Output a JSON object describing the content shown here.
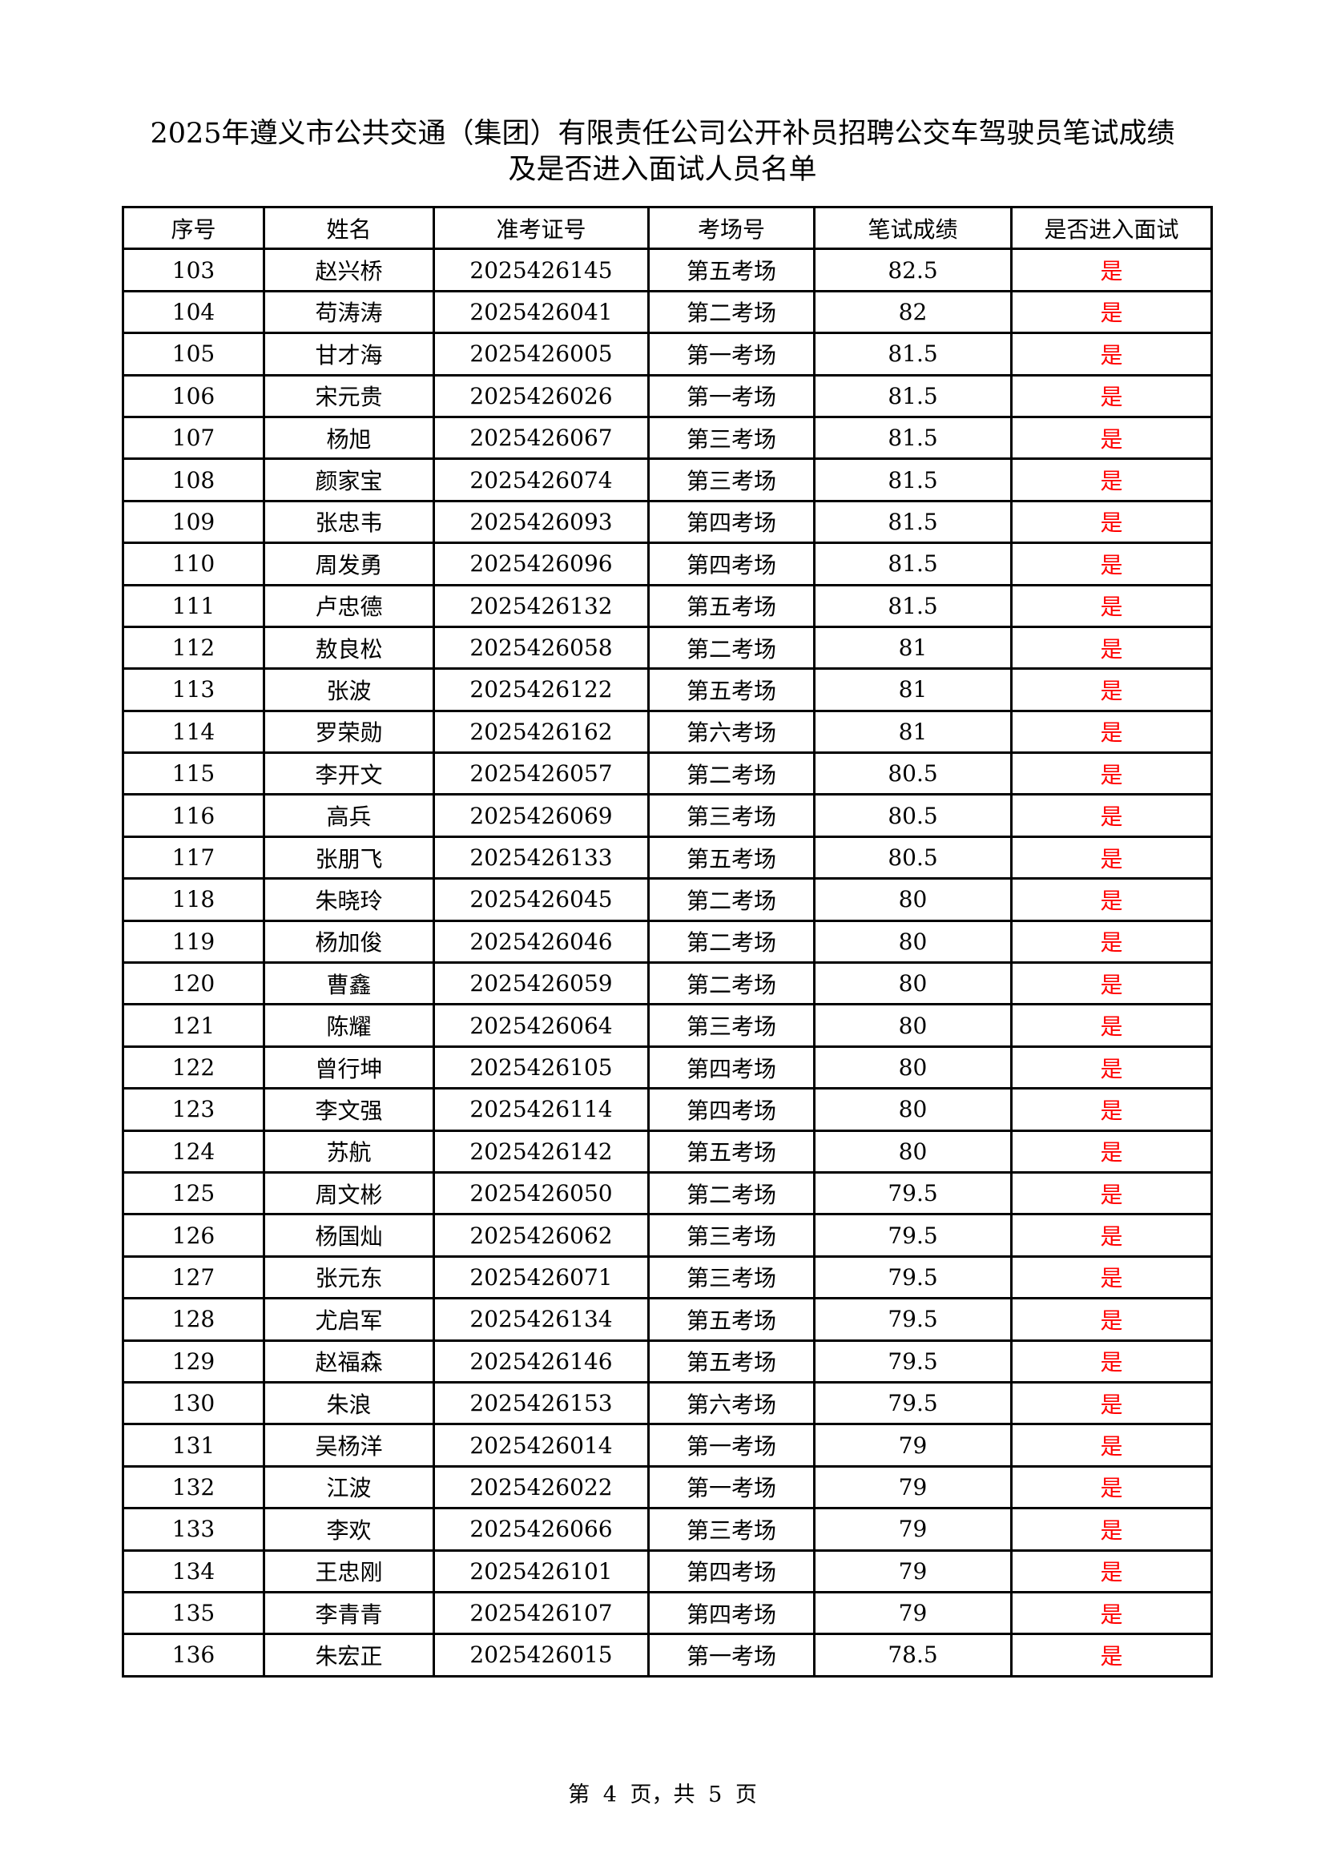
{
  "title": {
    "line1": "2025年遵义市公共交通（集团）有限责任公司公开补员招聘公交车驾驶员笔试成绩",
    "line2": "及是否进入面试人员名单"
  },
  "colors": {
    "yes_text": "#ff0000"
  },
  "table": {
    "headers": [
      "序号",
      "姓名",
      "准考证号",
      "考场号",
      "笔试成绩",
      "是否进入面试"
    ],
    "rows": [
      [
        "103",
        "赵兴桥",
        "2025426145",
        "第五考场",
        "82.5",
        "是"
      ],
      [
        "104",
        "苟涛涛",
        "2025426041",
        "第二考场",
        "82",
        "是"
      ],
      [
        "105",
        "甘才海",
        "2025426005",
        "第一考场",
        "81.5",
        "是"
      ],
      [
        "106",
        "宋元贵",
        "2025426026",
        "第一考场",
        "81.5",
        "是"
      ],
      [
        "107",
        "杨旭",
        "2025426067",
        "第三考场",
        "81.5",
        "是"
      ],
      [
        "108",
        "颜家宝",
        "2025426074",
        "第三考场",
        "81.5",
        "是"
      ],
      [
        "109",
        "张忠韦",
        "2025426093",
        "第四考场",
        "81.5",
        "是"
      ],
      [
        "110",
        "周发勇",
        "2025426096",
        "第四考场",
        "81.5",
        "是"
      ],
      [
        "111",
        "卢忠德",
        "2025426132",
        "第五考场",
        "81.5",
        "是"
      ],
      [
        "112",
        "敖良松",
        "2025426058",
        "第二考场",
        "81",
        "是"
      ],
      [
        "113",
        "张波",
        "2025426122",
        "第五考场",
        "81",
        "是"
      ],
      [
        "114",
        "罗荣勋",
        "2025426162",
        "第六考场",
        "81",
        "是"
      ],
      [
        "115",
        "李开文",
        "2025426057",
        "第二考场",
        "80.5",
        "是"
      ],
      [
        "116",
        "高兵",
        "2025426069",
        "第三考场",
        "80.5",
        "是"
      ],
      [
        "117",
        "张朋飞",
        "2025426133",
        "第五考场",
        "80.5",
        "是"
      ],
      [
        "118",
        "朱晓玲",
        "2025426045",
        "第二考场",
        "80",
        "是"
      ],
      [
        "119",
        "杨加俊",
        "2025426046",
        "第二考场",
        "80",
        "是"
      ],
      [
        "120",
        "曹鑫",
        "2025426059",
        "第二考场",
        "80",
        "是"
      ],
      [
        "121",
        "陈耀",
        "2025426064",
        "第三考场",
        "80",
        "是"
      ],
      [
        "122",
        "曾行坤",
        "2025426105",
        "第四考场",
        "80",
        "是"
      ],
      [
        "123",
        "李文强",
        "2025426114",
        "第四考场",
        "80",
        "是"
      ],
      [
        "124",
        "苏航",
        "2025426142",
        "第五考场",
        "80",
        "是"
      ],
      [
        "125",
        "周文彬",
        "2025426050",
        "第二考场",
        "79.5",
        "是"
      ],
      [
        "126",
        "杨国灿",
        "2025426062",
        "第三考场",
        "79.5",
        "是"
      ],
      [
        "127",
        "张元东",
        "2025426071",
        "第三考场",
        "79.5",
        "是"
      ],
      [
        "128",
        "尤启军",
        "2025426134",
        "第五考场",
        "79.5",
        "是"
      ],
      [
        "129",
        "赵福森",
        "2025426146",
        "第五考场",
        "79.5",
        "是"
      ],
      [
        "130",
        "朱浪",
        "2025426153",
        "第六考场",
        "79.5",
        "是"
      ],
      [
        "131",
        "吴杨洋",
        "2025426014",
        "第一考场",
        "79",
        "是"
      ],
      [
        "132",
        "江波",
        "2025426022",
        "第一考场",
        "79",
        "是"
      ],
      [
        "133",
        "李欢",
        "2025426066",
        "第三考场",
        "79",
        "是"
      ],
      [
        "134",
        "王忠刚",
        "2025426101",
        "第四考场",
        "79",
        "是"
      ],
      [
        "135",
        "李青青",
        "2025426107",
        "第四考场",
        "79",
        "是"
      ],
      [
        "136",
        "朱宏正",
        "2025426015",
        "第一考场",
        "78.5",
        "是"
      ]
    ]
  },
  "footer": {
    "page_label": "第 4 页，共 5 页"
  }
}
